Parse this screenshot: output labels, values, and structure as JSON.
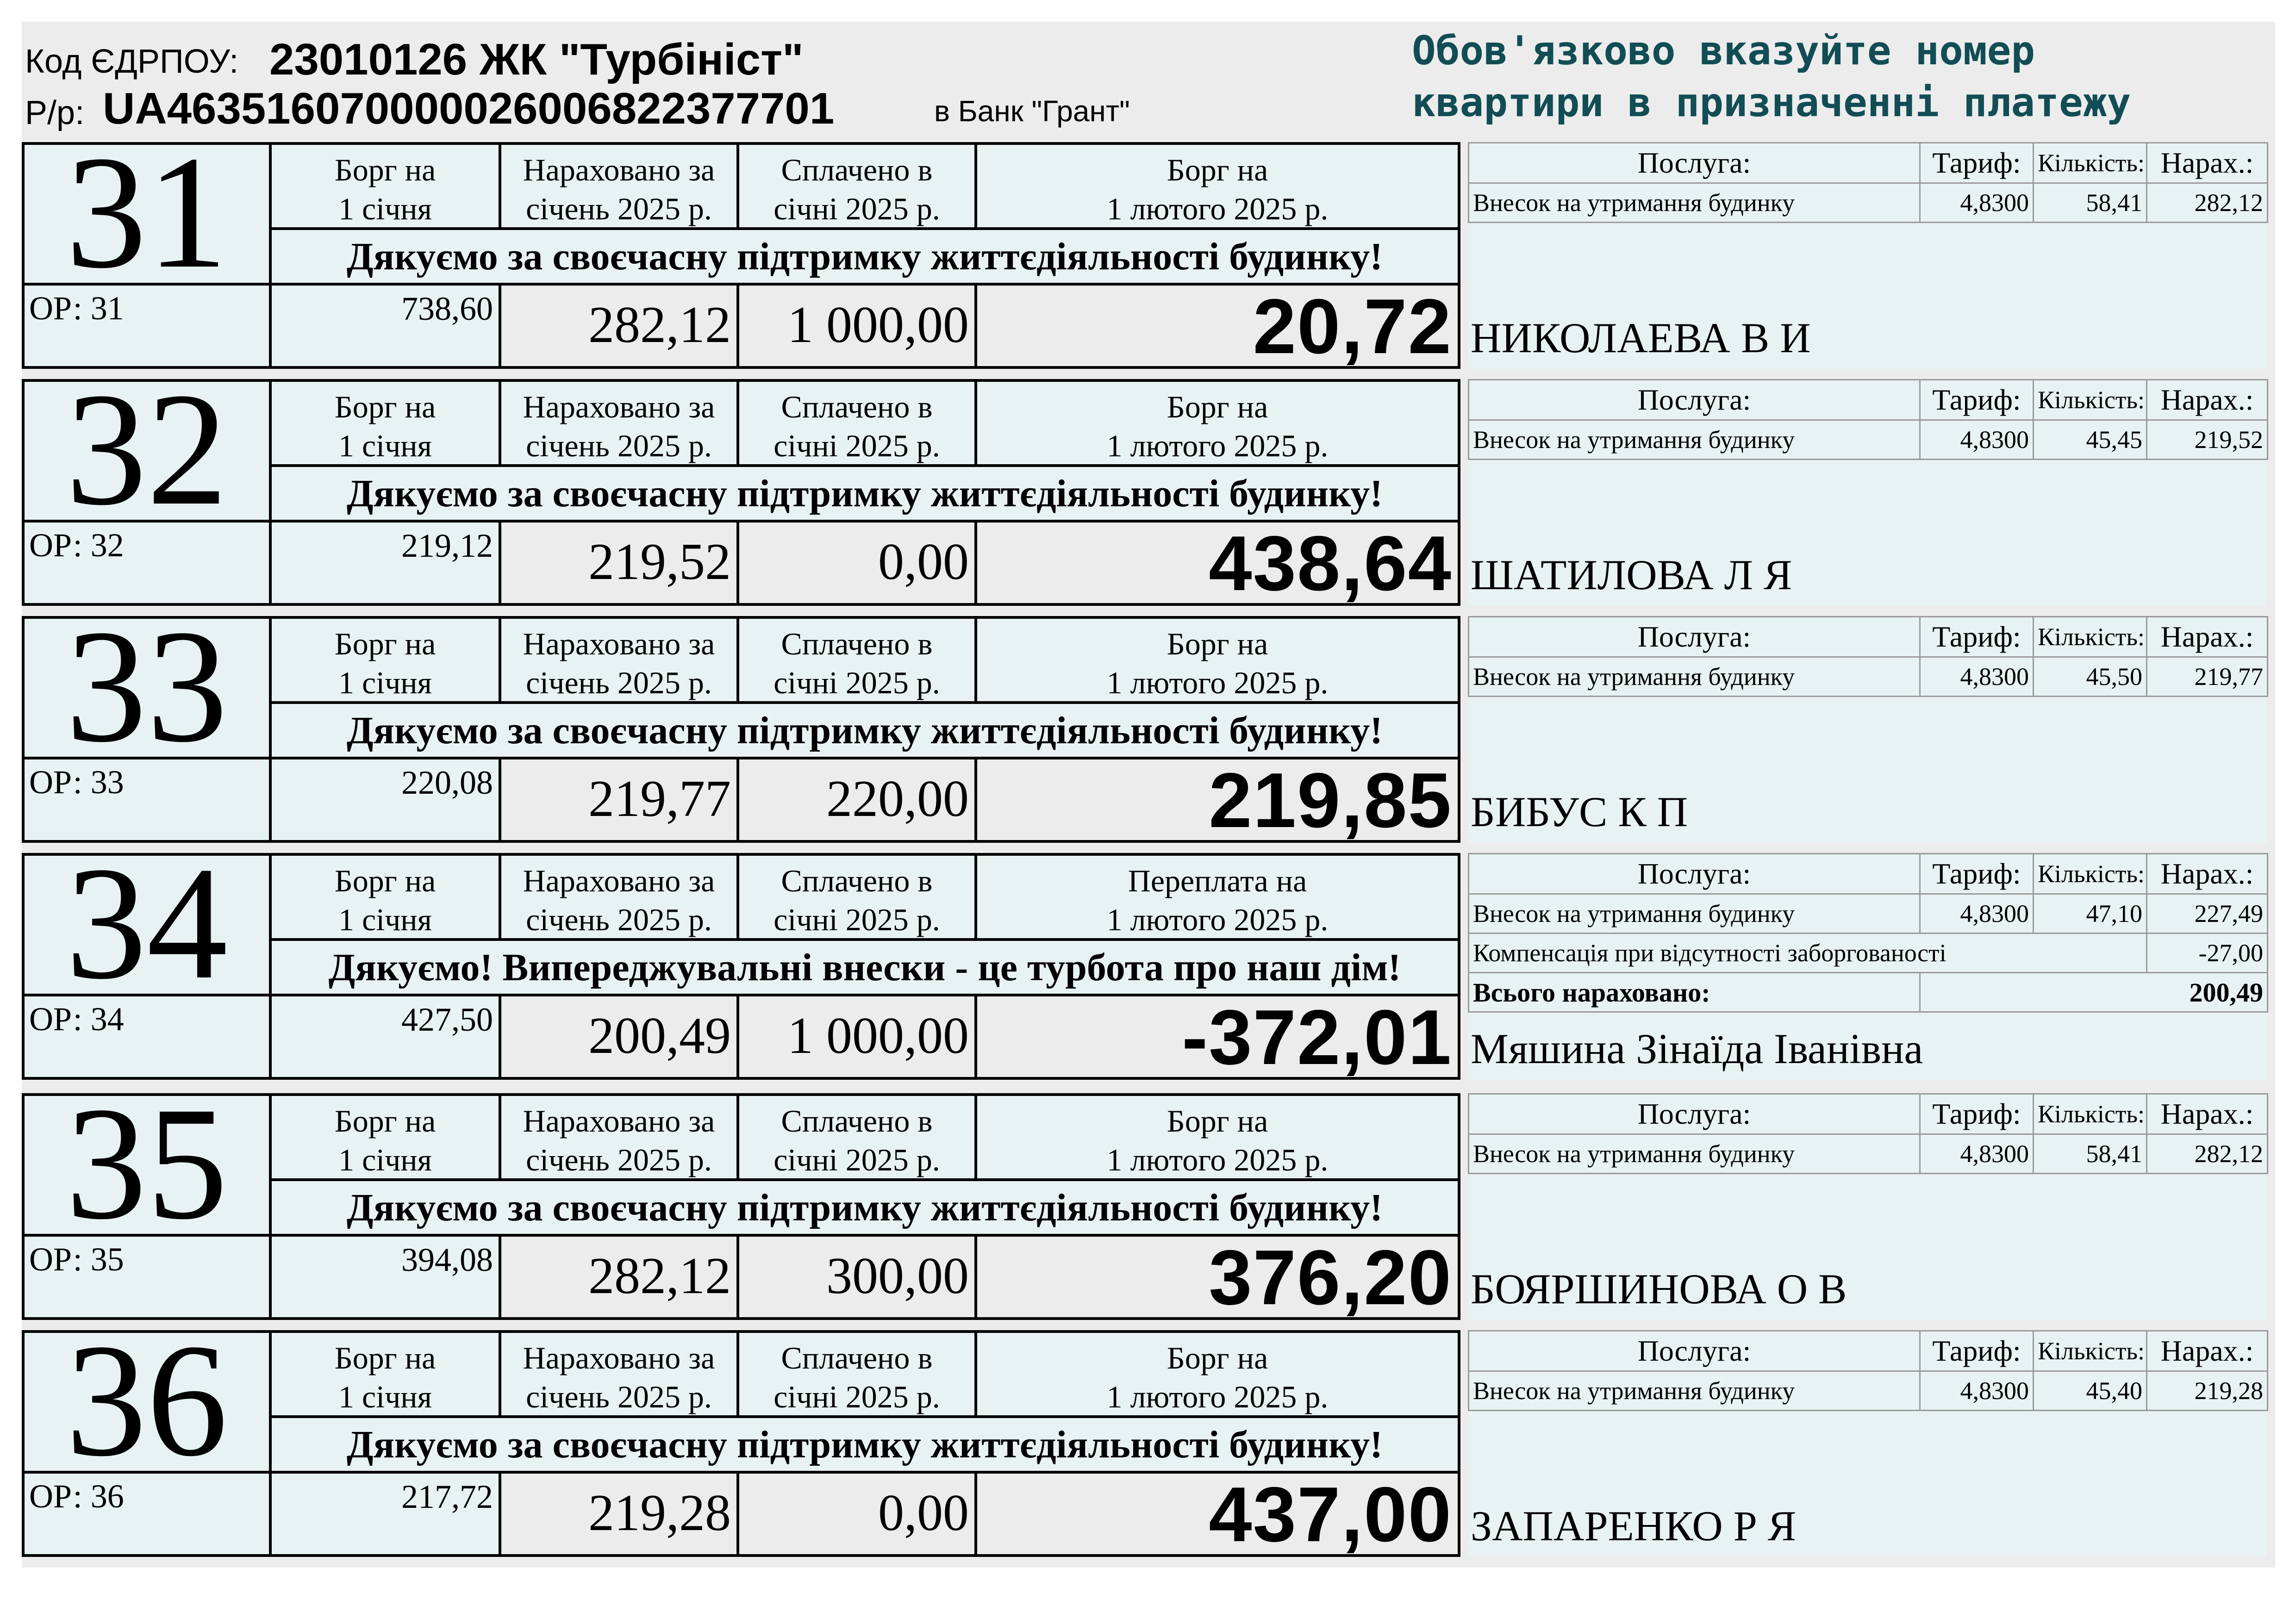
{
  "header": {
    "code_label": "Код ЄДРПОУ:",
    "code": "23010126  ЖК \"Турбініст\"",
    "account_label": "Р/р:",
    "iban": "UA463516070000026006822377701",
    "bank": "в Банк \"Грант\"",
    "notice_line1": "Обов'язково вказуйте номер",
    "notice_line2": "квартири в призначенні платежу"
  },
  "headers": {
    "debt_start_l1": "Борг на",
    "debt_start_l2": "1 січня",
    "accrued_l1": "Нараховано за",
    "accrued_l2": "січень 2025 р.",
    "paid_l1": "Сплачено в",
    "paid_l2": "січні 2025 р.",
    "month_end_l2": "1 лютого 2025 р."
  },
  "services_header": {
    "service": "Послуга:",
    "tariff": "Тариф:",
    "quantity": "Кількість:",
    "accrued": "Нарах.:"
  },
  "apartments": [
    {
      "number": "31",
      "account": "ОР: 31",
      "end_label": "Борг на",
      "thanks": "Дякуємо за своєчасну підтримку життєдіяльності будинку!",
      "debt_start": "738,60",
      "accrued": "282,12",
      "paid": "1 000,00",
      "debt_end": "20,72",
      "owner": "НИКОЛАЕВА В И",
      "services": [
        {
          "name": "Внесок на утримання будинку",
          "tariff": "4,8300",
          "quantity": "58,41",
          "amount": "282,12"
        }
      ]
    },
    {
      "number": "32",
      "account": "ОР: 32",
      "end_label": "Борг на",
      "thanks": "Дякуємо за своєчасну підтримку життєдіяльності будинку!",
      "debt_start": "219,12",
      "accrued": "219,52",
      "paid": "0,00",
      "debt_end": "438,64",
      "owner": "ШАТИЛОВА Л Я",
      "services": [
        {
          "name": "Внесок на утримання будинку",
          "tariff": "4,8300",
          "quantity": "45,45",
          "amount": "219,52"
        }
      ]
    },
    {
      "number": "33",
      "account": "ОР: 33",
      "end_label": "Борг на",
      "thanks": "Дякуємо за своєчасну підтримку життєдіяльності будинку!",
      "debt_start": "220,08",
      "accrued": "219,77",
      "paid": "220,00",
      "debt_end": "219,85",
      "owner": "БИБУС К П",
      "services": [
        {
          "name": "Внесок на утримання будинку",
          "tariff": "4,8300",
          "quantity": "45,50",
          "amount": "219,77"
        }
      ]
    },
    {
      "number": "34",
      "account": "ОР: 34",
      "end_label": "Переплата на",
      "thanks": "Дякуємо! Випереджувальні внески - це турбота про наш дім!",
      "debt_start": "427,50",
      "accrued": "200,49",
      "paid": "1 000,00",
      "debt_end": "-372,01",
      "owner": "Мяшина Зінаїда Іванівна",
      "services": [
        {
          "name": "Внесок на утримання будинку",
          "tariff": "4,8300",
          "quantity": "47,10",
          "amount": "227,49"
        },
        {
          "name": "Компенсація при відсутності заборгованості",
          "tariff": "",
          "quantity": "",
          "amount": "-27,00"
        }
      ],
      "total_label": "Всього нараховано:",
      "total": "200,49"
    },
    {
      "number": "35",
      "account": "ОР: 35",
      "end_label": "Борг на",
      "thanks": "Дякуємо за своєчасну підтримку життєдіяльності будинку!",
      "debt_start": "394,08",
      "accrued": "282,12",
      "paid": "300,00",
      "debt_end": "376,20",
      "owner": "БОЯРШИНОВА О В",
      "services": [
        {
          "name": "Внесок на утримання будинку",
          "tariff": "4,8300",
          "quantity": "58,41",
          "amount": "282,12"
        }
      ]
    },
    {
      "number": "36",
      "account": "ОР: 36",
      "end_label": "Борг на",
      "thanks": "Дякуємо за своєчасну підтримку життєдіяльності будинку!",
      "debt_start": "217,72",
      "accrued": "219,28",
      "paid": "0,00",
      "debt_end": "437,00",
      "owner": "ЗАПАРЕНКО Р Я",
      "services": [
        {
          "name": "Внесок на утримання будинку",
          "tariff": "4,8300",
          "quantity": "45,40",
          "amount": "219,28"
        }
      ]
    }
  ]
}
